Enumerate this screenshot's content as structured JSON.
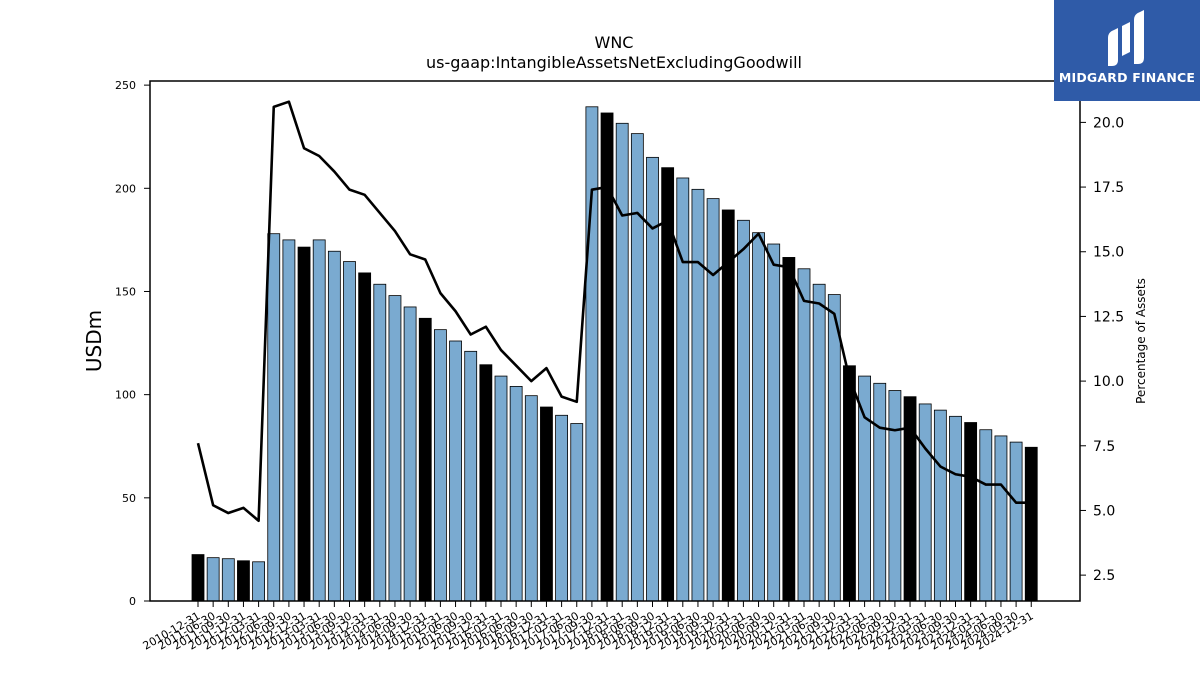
{
  "header": {
    "title": "WNC",
    "subtitle": "us-gaap:IntangibleAssetsNetExcludingGoodwill"
  },
  "brand": {
    "name": "MIDGARD FINANCE",
    "bg_color": "#2f5ba8"
  },
  "chart_data": {
    "type": "bar",
    "title": "WNC",
    "subtitle": "us-gaap:IntangibleAssetsNetExcludingGoodwill",
    "ylabel": "USDm",
    "y2label": "Percentage of Assets",
    "ylim": [
      0,
      252
    ],
    "y2lim": [
      1.5,
      21.6
    ],
    "yticks": [
      "0",
      "50",
      "100",
      "150",
      "200",
      "250"
    ],
    "y2ticks": [
      "2.5",
      "5.0",
      "7.5",
      "10.0",
      "12.5",
      "15.0",
      "17.5",
      "20.0"
    ],
    "grid": false,
    "colors": {
      "bar": "#7aaad0",
      "bar_highlight": "#000000",
      "line": "#000000"
    },
    "categories": [
      "2010-12-31",
      "2011-06-30",
      "2011-09-30",
      "2011-12-31",
      "2012-03-31",
      "2012-06-30",
      "2012-09-30",
      "2012-12-31",
      "2013-03-31",
      "2013-06-30",
      "2013-09-30",
      "2013-12-31",
      "2014-03-31",
      "2014-06-30",
      "2014-09-30",
      "2014-12-31",
      "2015-03-31",
      "2015-06-30",
      "2015-09-30",
      "2015-12-31",
      "2016-03-31",
      "2016-06-30",
      "2016-09-30",
      "2016-12-31",
      "2017-03-31",
      "2017-06-30",
      "2017-09-30",
      "2017-12-31",
      "2018-03-31",
      "2018-06-30",
      "2018-09-30",
      "2018-12-31",
      "2019-03-31",
      "2019-06-30",
      "2019-09-30",
      "2019-12-31",
      "2020-03-31",
      "2020-06-30",
      "2020-09-30",
      "2020-12-31",
      "2021-03-31",
      "2021-06-30",
      "2021-09-30",
      "2021-12-31",
      "2022-03-31",
      "2022-06-30",
      "2022-09-30",
      "2022-12-31",
      "2023-03-31",
      "2023-06-30",
      "2023-09-30",
      "2023-12-31",
      "2024-03-31",
      "2024-06-30",
      "2024-09-30",
      "2024-12-31"
    ],
    "series": [
      {
        "type": "bar",
        "values": [
          22.5,
          21,
          20.5,
          19.5,
          19,
          178,
          175,
          171.5,
          175,
          169.5,
          164.5,
          159,
          153.5,
          148,
          142.5,
          137,
          131.5,
          126,
          121,
          114.5,
          109,
          104,
          99.5,
          94,
          90,
          86,
          239.5,
          236.5,
          231.5,
          226.5,
          215,
          210,
          205,
          199.5,
          195,
          189.5,
          184.5,
          178.5,
          173,
          166.5,
          161,
          153.5,
          148.5,
          114,
          109,
          105.5,
          102,
          99,
          95.5,
          92.5,
          89.5,
          86.5,
          83,
          80,
          77,
          74.5
        ],
        "highlight": [
          true,
          false,
          false,
          true,
          false,
          false,
          false,
          true,
          false,
          false,
          false,
          true,
          false,
          false,
          false,
          true,
          false,
          false,
          false,
          true,
          false,
          false,
          false,
          true,
          false,
          false,
          false,
          true,
          false,
          false,
          false,
          true,
          false,
          false,
          false,
          true,
          false,
          false,
          false,
          true,
          false,
          false,
          false,
          true,
          false,
          false,
          false,
          true,
          false,
          false,
          false,
          true,
          false,
          false,
          false,
          true
        ]
      },
      {
        "type": "line",
        "axis": "right",
        "values": [
          7.6,
          5.2,
          4.9,
          5.1,
          4.6,
          20.6,
          20.8,
          19,
          18.7,
          18.1,
          17.4,
          17.2,
          16.5,
          15.8,
          14.9,
          14.7,
          13.4,
          12.7,
          11.8,
          12.1,
          11.2,
          10.6,
          10.0,
          10.5,
          9.4,
          9.2,
          17.4,
          17.5,
          16.4,
          16.5,
          15.9,
          16.2,
          14.6,
          14.6,
          14.1,
          14.6,
          15.1,
          15.7,
          14.5,
          14.4,
          13.1,
          13.0,
          12.6,
          10.1,
          8.6,
          8.2,
          8.1,
          8.2,
          7.4,
          6.7,
          6.4,
          6.3,
          6.0,
          6.0,
          5.3,
          5.3
        ]
      }
    ]
  }
}
